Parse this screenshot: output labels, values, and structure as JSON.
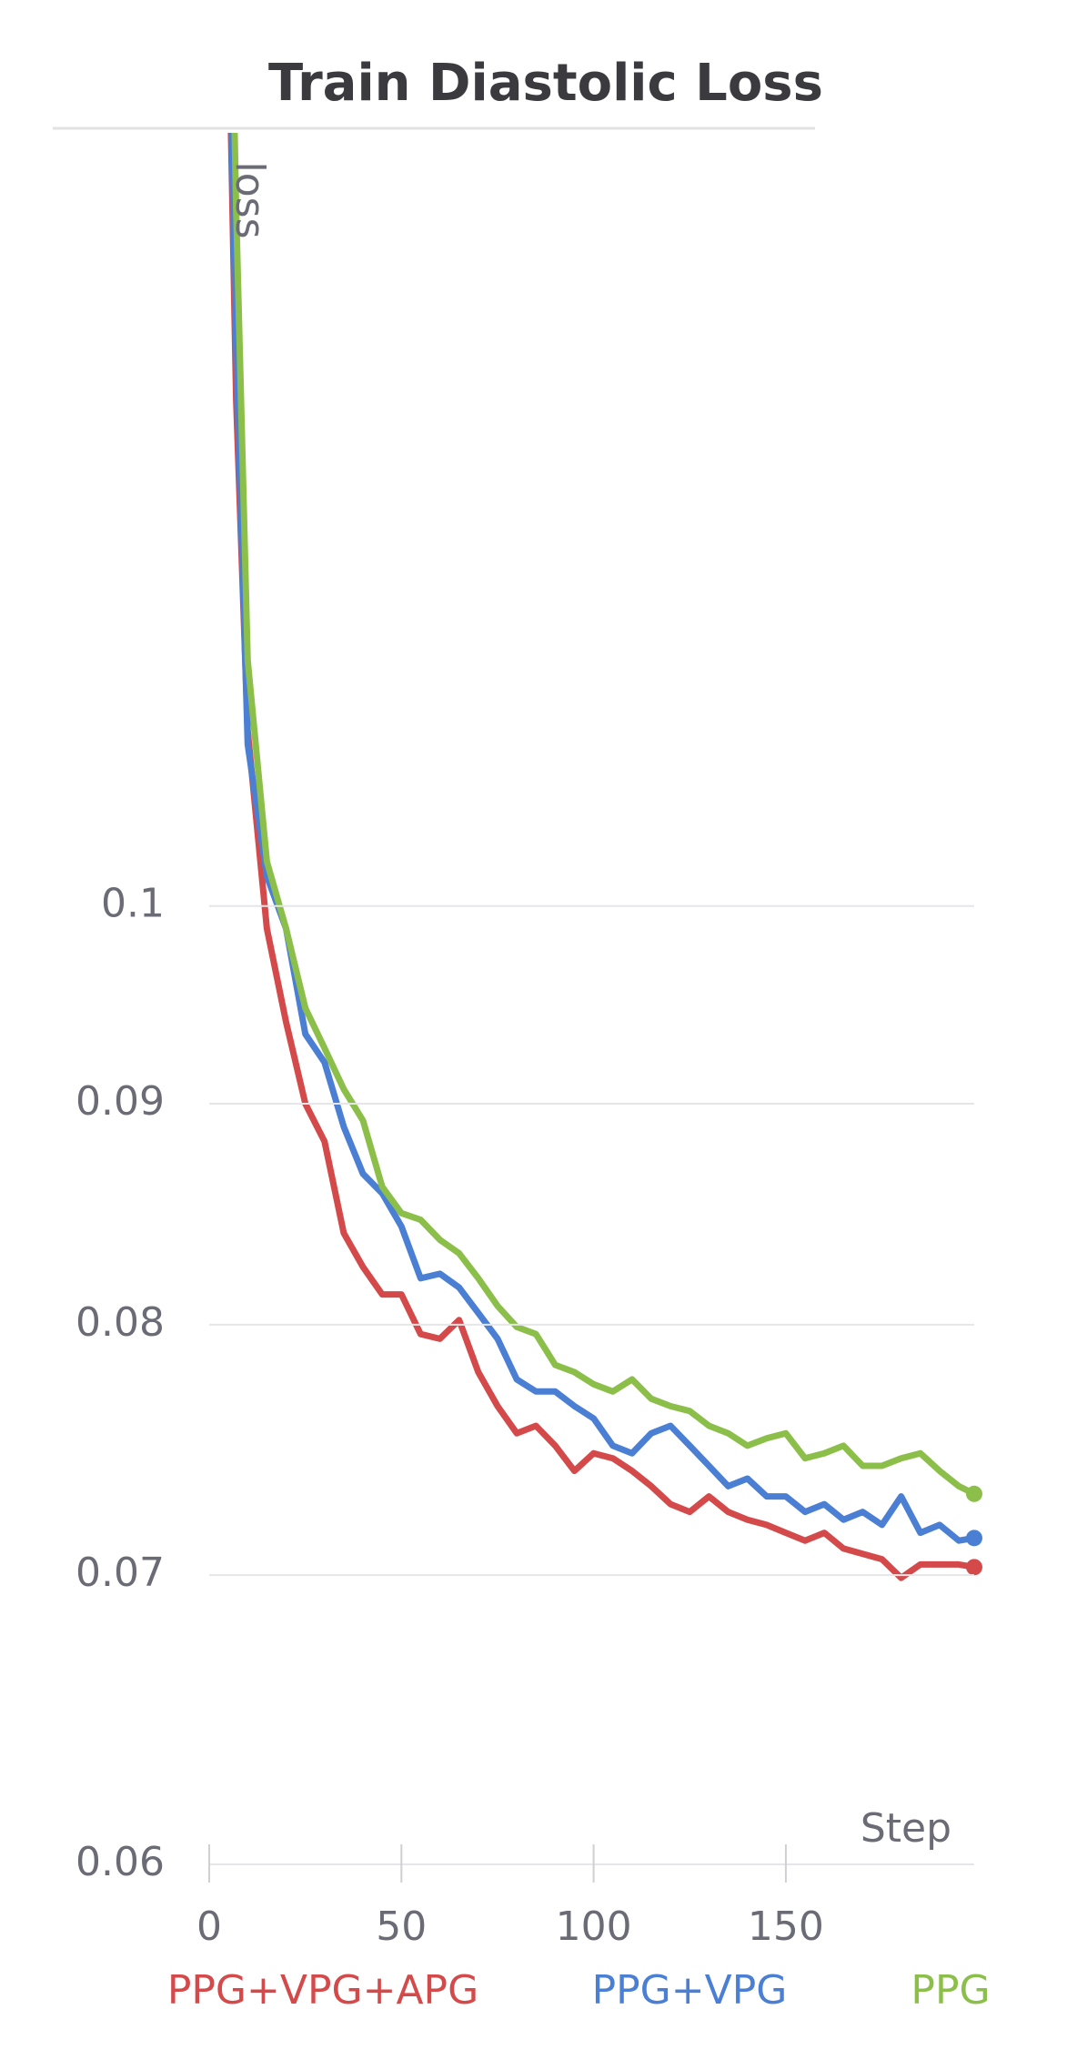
{
  "chart_data": {
    "type": "line",
    "title": "Train Diastolic Loss",
    "x_label": "Step",
    "y_label": "loss",
    "log_y": true,
    "grid": true,
    "xlim": [
      0,
      199
    ],
    "xticks": [
      0,
      50,
      100,
      150
    ],
    "ylim": [
      0.06,
      0.151
    ],
    "yticks": [
      0.06,
      0.07,
      0.08,
      0.09,
      0.1
    ],
    "x": [
      3,
      7,
      10,
      15,
      20,
      25,
      30,
      35,
      40,
      45,
      50,
      55,
      60,
      65,
      70,
      75,
      80,
      85,
      90,
      95,
      100,
      105,
      110,
      115,
      120,
      125,
      130,
      135,
      140,
      145,
      150,
      155,
      160,
      165,
      170,
      175,
      180,
      185,
      190,
      195,
      199
    ],
    "series": [
      {
        "name": "PPG+VPG+APG",
        "color": "#d44a4a",
        "values": [
          0.2,
          0.131,
          0.1098,
          0.0988,
          0.094,
          0.09,
          0.0882,
          0.084,
          0.0825,
          0.0813,
          0.0813,
          0.0796,
          0.0794,
          0.0802,
          0.078,
          0.0766,
          0.0755,
          0.0758,
          0.075,
          0.074,
          0.0747,
          0.0745,
          0.074,
          0.0734,
          0.0727,
          0.0724,
          0.073,
          0.0724,
          0.0721,
          0.0719,
          0.0716,
          0.0713,
          0.0716,
          0.071,
          0.0708,
          0.0706,
          0.0699,
          0.0704,
          0.0704,
          0.0704,
          0.0703
        ]
      },
      {
        "name": "PPG+VPG",
        "color": "#4a7fd4",
        "values": [
          0.2,
          0.135,
          0.109,
          0.1016,
          0.0988,
          0.0934,
          0.092,
          0.0889,
          0.0867,
          0.0858,
          0.0843,
          0.082,
          0.0822,
          0.0816,
          0.0805,
          0.0794,
          0.0777,
          0.0772,
          0.0772,
          0.0766,
          0.0761,
          0.075,
          0.0747,
          0.0755,
          0.0758,
          0.075,
          0.0742,
          0.0734,
          0.0737,
          0.073,
          0.073,
          0.0724,
          0.0727,
          0.0721,
          0.0724,
          0.0719,
          0.073,
          0.0716,
          0.0719,
          0.0713,
          0.0714
        ]
      },
      {
        "name": "PPG",
        "color": "#8bbf4a",
        "values": [
          0.22,
          0.145,
          0.114,
          0.1024,
          0.0988,
          0.0947,
          0.0927,
          0.0907,
          0.0892,
          0.0861,
          0.0849,
          0.0846,
          0.0837,
          0.0831,
          0.082,
          0.0808,
          0.0799,
          0.0796,
          0.0783,
          0.078,
          0.0775,
          0.0772,
          0.0777,
          0.0769,
          0.0766,
          0.0764,
          0.0758,
          0.0755,
          0.075,
          0.0753,
          0.0755,
          0.0745,
          0.0747,
          0.075,
          0.0742,
          0.0742,
          0.0745,
          0.0747,
          0.074,
          0.0734,
          0.0731
        ]
      }
    ]
  }
}
